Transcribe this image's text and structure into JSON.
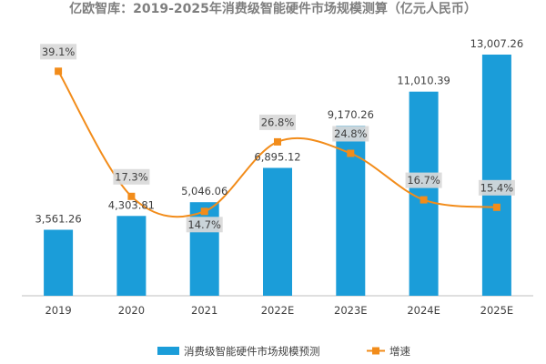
{
  "chart_data": {
    "type": "bar",
    "title": "亿欧智库：2019-2025年消费级智能硬件市场规模测算（亿元人民币）",
    "categories": [
      "2019",
      "2020",
      "2021",
      "2022E",
      "2023E",
      "2024E",
      "2025E"
    ],
    "series": [
      {
        "name": "消费级智能硬件市场规模预测",
        "type": "bar",
        "values": [
          3561.26,
          4303.81,
          5046.06,
          6895.12,
          9170.26,
          11010.39,
          13007.26
        ],
        "labels": [
          "3,561.26",
          "4,303.81",
          "5,046.06",
          "6,895.12",
          "9,170.26",
          "11,010.39",
          "13,007.26"
        ],
        "color": "#1b9dd9"
      },
      {
        "name": "增速",
        "type": "line",
        "values": [
          39.1,
          17.3,
          14.7,
          26.8,
          24.8,
          16.7,
          15.4
        ],
        "labels": [
          "39.1%",
          "17.3%",
          "14.7%",
          "26.8%",
          "24.8%",
          "16.7%",
          "15.4%"
        ],
        "color": "#f28c1a"
      }
    ],
    "ylim": [
      0,
      13500
    ],
    "ylim_rate": [
      0,
      42
    ],
    "legend_position": "bottom-center",
    "grid": false
  }
}
